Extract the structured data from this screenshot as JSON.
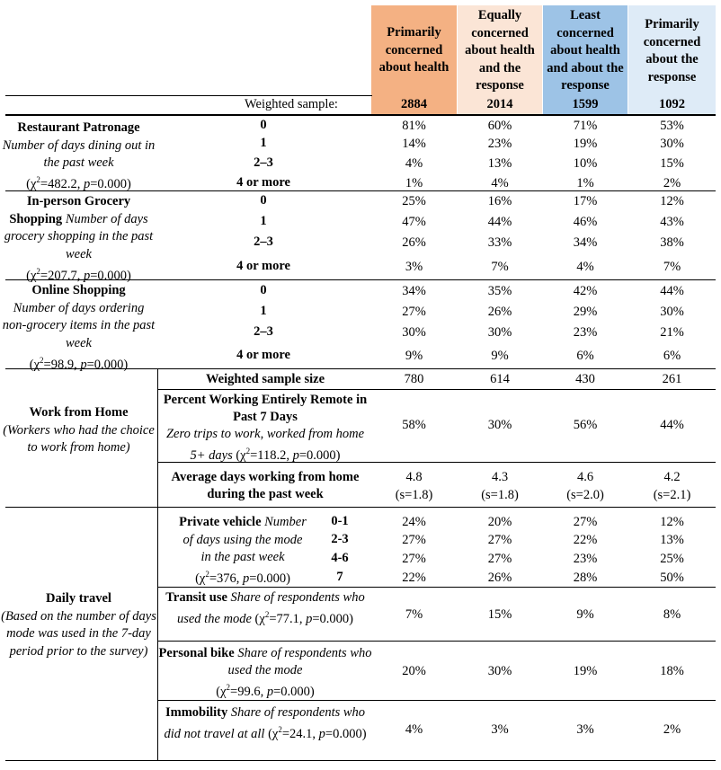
{
  "columns": [
    {
      "header": "Primarily concerned about health",
      "n": "2884",
      "color": "#f4b183"
    },
    {
      "header": "Equally concerned about health and the response",
      "n": "2014",
      "color": "#fbe5d6"
    },
    {
      "header": "Least concerned about health and about the response",
      "n": "1599",
      "color": "#9dc3e6"
    },
    {
      "header": "Primarily concerned about the response",
      "n": "1092",
      "color": "#deebf7"
    }
  ],
  "weighted_sample_label": "Weighted sample:",
  "restaurant": {
    "title": "Restaurant Patronage",
    "desc": "Number of days dining out in the past week",
    "chi_open": "(χ",
    "chi_sup": "2",
    "chi_mid": "=482.2, ",
    "p": "p",
    "chi_end": "=0.000)",
    "rows": [
      {
        "label": "0",
        "v": [
          "81%",
          "60%",
          "71%",
          "53%"
        ]
      },
      {
        "label": "1",
        "v": [
          "14%",
          "23%",
          "19%",
          "30%"
        ]
      },
      {
        "label": "2–3",
        "v": [
          "4%",
          "13%",
          "10%",
          "15%"
        ]
      },
      {
        "label": "4 or more",
        "v": [
          "1%",
          "4%",
          "1%",
          "2%"
        ]
      }
    ]
  },
  "grocery": {
    "title": "In-person Grocery Shopping",
    "desc": "Number of days grocery shopping in the past week",
    "chi_open": "(χ",
    "chi_sup": "2",
    "chi_mid": "=207.7, ",
    "p": "p",
    "chi_end": "=0.000)",
    "rows": [
      {
        "label": "0",
        "v": [
          "25%",
          "16%",
          "17%",
          "12%"
        ]
      },
      {
        "label": "1",
        "v": [
          "47%",
          "44%",
          "46%",
          "43%"
        ]
      },
      {
        "label": "2–3",
        "v": [
          "26%",
          "33%",
          "34%",
          "38%"
        ]
      },
      {
        "label": "4 or more",
        "v": [
          "3%",
          "7%",
          "4%",
          "7%"
        ]
      }
    ]
  },
  "online": {
    "title": "Online Shopping",
    "desc": "Number of days ordering non-grocery items in the past week",
    "chi_open": "(χ",
    "chi_sup": "2",
    "chi_mid": "=98.9, ",
    "p": "p",
    "chi_end": "=0.000)",
    "rows": [
      {
        "label": "0",
        "v": [
          "34%",
          "35%",
          "42%",
          "44%"
        ]
      },
      {
        "label": "1",
        "v": [
          "27%",
          "26%",
          "29%",
          "30%"
        ]
      },
      {
        "label": "2–3",
        "v": [
          "30%",
          "30%",
          "23%",
          "21%"
        ]
      },
      {
        "label": "4 or more",
        "v": [
          "9%",
          "9%",
          "6%",
          "6%"
        ]
      }
    ]
  },
  "wfh": {
    "title": "Work from Home",
    "desc": "(Workers who had the choice to work from home)",
    "sample_label": "Weighted sample size",
    "sample_values": [
      "780",
      "614",
      "430",
      "261"
    ],
    "remote_title": "Percent Working Entirely Remote in Past 7 Days",
    "remote_desc": "Zero trips to work, worked from home 5+ days",
    "remote_chi_open": "(χ",
    "remote_chi_sup": "2",
    "remote_chi_mid": "=118.2, ",
    "remote_p": "p",
    "remote_chi_end": "=0.000)",
    "remote_values": [
      "58%",
      "30%",
      "56%",
      "44%"
    ],
    "avg_title": "Average days working from home during the past week",
    "avg_values": [
      "4.8",
      "4.3",
      "4.6",
      "4.2"
    ],
    "avg_sd": [
      "(s=1.8)",
      "(s=1.8)",
      "(s=2.0)",
      "(s=2.1)"
    ]
  },
  "travel": {
    "title": "Daily travel",
    "desc": "(Based on the number of days mode was used in the 7-day period prior to the survey)",
    "private": {
      "title": "Private vehicle",
      "desc1": "Number",
      "desc2": "of days using the mode",
      "desc3": "in the past week",
      "chi_open": "(χ",
      "chi_sup": "2",
      "chi_mid": "=376, ",
      "p": "p",
      "chi_end": "=0.000)",
      "rows": [
        {
          "label": "0-1",
          "v": [
            "24%",
            "20%",
            "27%",
            "12%"
          ]
        },
        {
          "label": "2-3",
          "v": [
            "27%",
            "27%",
            "22%",
            "13%"
          ]
        },
        {
          "label": "4-6",
          "v": [
            "27%",
            "27%",
            "23%",
            "25%"
          ]
        },
        {
          "label": "7",
          "v": [
            "22%",
            "26%",
            "28%",
            "50%"
          ]
        }
      ]
    },
    "transit": {
      "title": "Transit use",
      "desc": "Share of respondents who used the mode",
      "chi_open": "(χ",
      "chi_sup": "2",
      "chi_mid": "=77.1, ",
      "p": "p",
      "chi_end": "=0.000)",
      "values": [
        "7%",
        "15%",
        "9%",
        "8%"
      ]
    },
    "bike": {
      "title": "Personal bike",
      "desc": "Share of respondents who used the mode",
      "chi_open": "(χ",
      "chi_sup": "2",
      "chi_mid": "=99.6, ",
      "p": "p",
      "chi_end": "=0.000)",
      "values": [
        "20%",
        "30%",
        "19%",
        "18%"
      ]
    },
    "immobility": {
      "title": "Immobility",
      "desc": "Share of respondents who did not travel at all",
      "chi_open": "(χ",
      "chi_sup": "2",
      "chi_mid": "=24.1, ",
      "p": "p",
      "chi_end": "=0.000)",
      "values": [
        "4%",
        "3%",
        "3%",
        "2%"
      ]
    }
  }
}
